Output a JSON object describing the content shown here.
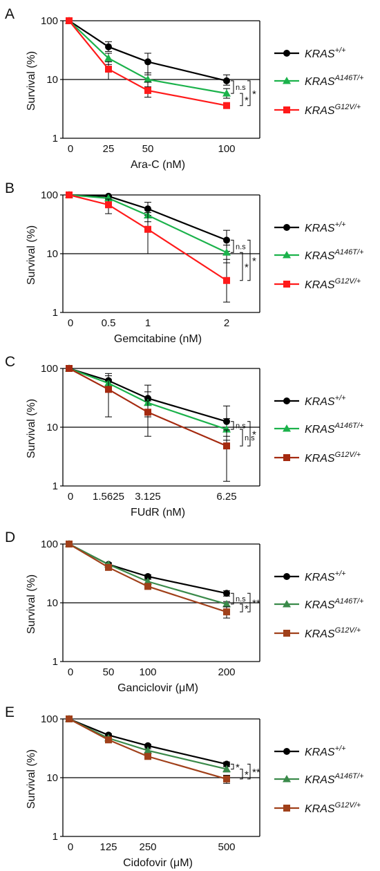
{
  "chart_data": [
    {
      "type": "line",
      "panel": "A",
      "xlabel": "Ara-C (nM)",
      "ylabel": "Survival (%)",
      "y_scale": "log",
      "ylim": [
        1,
        100
      ],
      "yticks": [
        "1",
        "10",
        "100"
      ],
      "categories": [
        "0",
        "25",
        "50",
        "100"
      ],
      "series": [
        {
          "name": "KRAS",
          "sup": "+/+",
          "color": "#000000",
          "marker": "circle",
          "values": [
            100,
            36,
            20,
            9.5
          ],
          "err_high": [
            100,
            44,
            28,
            12
          ],
          "err_low": [
            100,
            30,
            12,
            8
          ]
        },
        {
          "name": "KRAS",
          "sup": "A146T/+",
          "color": "#1bb24b",
          "marker": "triangle",
          "values": [
            100,
            23,
            10,
            5.8
          ],
          "err_high": [
            100,
            28,
            13,
            7
          ],
          "err_low": [
            100,
            18,
            7.5,
            4.8
          ]
        },
        {
          "name": "KRAS",
          "sup": "G12V/+",
          "color": "#ff1a1a",
          "marker": "square",
          "values": [
            100,
            15,
            6.5,
            3.6
          ],
          "err_high": [
            100,
            20,
            9,
            4
          ],
          "err_low": [
            100,
            10,
            5,
            3.3
          ]
        }
      ],
      "significance": [
        {
          "label": "n.s",
          "from": 0,
          "to": 1
        },
        {
          "label": "*",
          "from": 1,
          "to": 2
        },
        {
          "label": "*",
          "from": 0,
          "to": 2
        }
      ]
    },
    {
      "type": "line",
      "panel": "B",
      "xlabel": "Gemcitabine (nM)",
      "ylabel": "Survival (%)",
      "y_scale": "log",
      "ylim": [
        1,
        100
      ],
      "yticks": [
        "1",
        "10",
        "100"
      ],
      "categories": [
        "0",
        "0.5",
        "1",
        "2"
      ],
      "series": [
        {
          "name": "KRAS",
          "sup": "+/+",
          "color": "#000000",
          "marker": "circle",
          "values": [
            100,
            95,
            58,
            17
          ],
          "err_high": [
            100,
            100,
            75,
            25
          ],
          "err_low": [
            100,
            90,
            45,
            11
          ]
        },
        {
          "name": "KRAS",
          "sup": "A146T/+",
          "color": "#1bb24b",
          "marker": "triangle",
          "values": [
            100,
            88,
            45,
            10.5
          ],
          "err_high": [
            100,
            95,
            55,
            14
          ],
          "err_low": [
            100,
            80,
            35,
            7
          ]
        },
        {
          "name": "KRAS",
          "sup": "G12V/+",
          "color": "#ff1a1a",
          "marker": "square",
          "values": [
            100,
            68,
            26,
            3.5
          ],
          "err_high": [
            100,
            85,
            50,
            8
          ],
          "err_low": [
            100,
            48,
            10,
            1.5
          ]
        }
      ],
      "significance": [
        {
          "label": "n.s",
          "from": 0,
          "to": 1
        },
        {
          "label": "*",
          "from": 1,
          "to": 2
        },
        {
          "label": "*",
          "from": 0,
          "to": 2
        }
      ]
    },
    {
      "type": "line",
      "panel": "C",
      "xlabel": "FUdR (nM)",
      "ylabel": "Survival (%)",
      "y_scale": "log",
      "ylim": [
        1,
        100
      ],
      "yticks": [
        "1",
        "10",
        "100"
      ],
      "categories": [
        "0",
        "1.5625",
        "3.125",
        "6.25"
      ],
      "series": [
        {
          "name": "KRAS",
          "sup": "+/+",
          "color": "#000000",
          "marker": "circle",
          "values": [
            100,
            62,
            31,
            12.5
          ],
          "err_high": [
            100,
            82,
            52,
            23
          ],
          "err_low": [
            100,
            45,
            18,
            7
          ]
        },
        {
          "name": "KRAS",
          "sup": "A146T/+",
          "color": "#1bb24b",
          "marker": "triangle",
          "values": [
            100,
            56,
            26,
            9.2
          ],
          "err_high": [
            100,
            75,
            40,
            14
          ],
          "err_low": [
            100,
            40,
            15,
            6
          ]
        },
        {
          "name": "KRAS",
          "sup": "G12V/+",
          "color": "#a52a10",
          "marker": "square",
          "values": [
            100,
            44,
            18,
            4.8
          ],
          "err_high": [
            100,
            65,
            28,
            9
          ],
          "err_low": [
            100,
            15,
            7,
            1.2
          ]
        }
      ],
      "significance": [
        {
          "label": "n.s",
          "from": 0,
          "to": 1
        },
        {
          "label": "n.s",
          "from": 1,
          "to": 2
        },
        {
          "label": "*",
          "from": 0,
          "to": 2
        }
      ]
    },
    {
      "type": "line",
      "panel": "D",
      "xlabel": "Ganciclovir (μM)",
      "ylabel": "Survival (%)",
      "y_scale": "log",
      "ylim": [
        1,
        100
      ],
      "yticks": [
        "1",
        "10",
        "100"
      ],
      "categories": [
        "0",
        "50",
        "100",
        "200"
      ],
      "series": [
        {
          "name": "KRAS",
          "sup": "+/+",
          "color": "#000000",
          "marker": "circle",
          "values": [
            100,
            45,
            28,
            14.5
          ],
          "err_high": [
            100,
            48,
            30,
            16
          ],
          "err_low": [
            100,
            42,
            26,
            13
          ]
        },
        {
          "name": "KRAS",
          "sup": "A146T/+",
          "color": "#3a8a4a",
          "marker": "triangle",
          "values": [
            100,
            45,
            23,
            9.5
          ],
          "err_high": [
            100,
            48,
            25,
            10.5
          ],
          "err_low": [
            100,
            42,
            21,
            8.5
          ]
        },
        {
          "name": "KRAS",
          "sup": "G12V/+",
          "color": "#a0401a",
          "marker": "square",
          "values": [
            100,
            40,
            19,
            7
          ],
          "err_high": [
            100,
            43,
            21,
            8.5
          ],
          "err_low": [
            100,
            37,
            17,
            5.5
          ]
        }
      ],
      "significance": [
        {
          "label": "n.s",
          "from": 0,
          "to": 1
        },
        {
          "label": "*",
          "from": 1,
          "to": 2
        },
        {
          "label": "**",
          "from": 0,
          "to": 2
        }
      ]
    },
    {
      "type": "line",
      "panel": "E",
      "xlabel": "Cidofovir (μM)",
      "ylabel": "Survival (%)",
      "y_scale": "log",
      "ylim": [
        1,
        100
      ],
      "yticks": [
        "1",
        "10",
        "100"
      ],
      "categories": [
        "0",
        "125",
        "250",
        "500"
      ],
      "series": [
        {
          "name": "KRAS",
          "sup": "+/+",
          "color": "#000000",
          "marker": "circle",
          "values": [
            100,
            53,
            35,
            17
          ],
          "err_high": [
            100,
            56,
            37,
            18.5
          ],
          "err_low": [
            100,
            50,
            33,
            15.5
          ]
        },
        {
          "name": "KRAS",
          "sup": "A146T/+",
          "color": "#3a8a4a",
          "marker": "triangle",
          "values": [
            100,
            47,
            29,
            14
          ],
          "err_high": [
            100,
            50,
            31,
            15.5
          ],
          "err_low": [
            100,
            44,
            27,
            12.5
          ]
        },
        {
          "name": "KRAS",
          "sup": "G12V/+",
          "color": "#a0401a",
          "marker": "square",
          "values": [
            100,
            44,
            23,
            9.5
          ],
          "err_high": [
            100,
            47,
            25,
            11
          ],
          "err_low": [
            100,
            41,
            21,
            8
          ]
        }
      ],
      "significance": [
        {
          "label": "*",
          "from": 0,
          "to": 1
        },
        {
          "label": "*",
          "from": 1,
          "to": 2
        },
        {
          "label": "**",
          "from": 0,
          "to": 2
        }
      ]
    }
  ]
}
